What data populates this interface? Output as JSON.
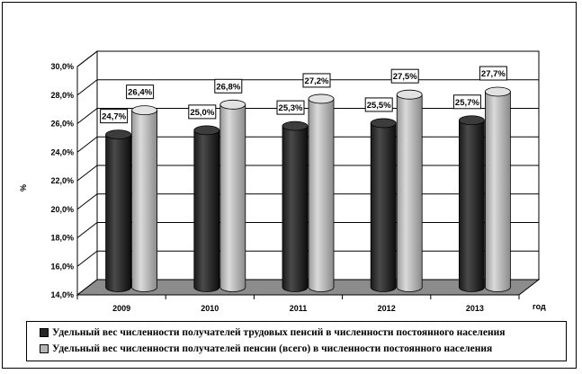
{
  "chart_data": {
    "type": "bar",
    "bar_style": "3d-cylinder",
    "categories": [
      "2009",
      "2010",
      "2011",
      "2012",
      "2013"
    ],
    "series": [
      {
        "name": "Удельный вес численности получателей трудовых пенсий  в численности постоянного населения",
        "values": [
          24.7,
          25.0,
          25.3,
          25.5,
          25.7
        ],
        "labels": [
          "24,7%",
          "25,0%",
          "25,3%",
          "25,5%",
          "25,7%"
        ],
        "color": "#262626"
      },
      {
        "name": "Удельный вес численности получателей пенсии (всего) в численности постоянного населения",
        "values": [
          26.4,
          26.8,
          27.2,
          27.5,
          27.7
        ],
        "labels": [
          "26,4%",
          "26,8%",
          "27,2%",
          "27,5%",
          "27,7%"
        ],
        "color": "#b5b5b5"
      }
    ],
    "xlabel": "год",
    "ylabel": "%",
    "ylim": [
      14,
      30
    ],
    "yticks": [
      "14,0%",
      "16,0%",
      "18,0%",
      "20,0%",
      "22,0%",
      "24,0%",
      "26,0%",
      "28,0%",
      "30,0%"
    ],
    "grid": true,
    "floor_color": "#8c8c8c",
    "legend_position": "bottom"
  }
}
